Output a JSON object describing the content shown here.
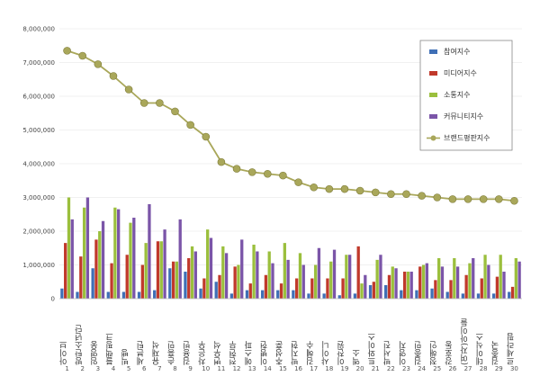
{
  "chart_data": {
    "type": "bar",
    "title": "",
    "xlabel": "",
    "ylabel": "",
    "ylim": [
      0,
      8000000
    ],
    "yticks": [
      "0",
      "1,000,000",
      "2,000,000",
      "3,000,000",
      "4,000,000",
      "5,000,000",
      "6,000,000",
      "7,000,000",
      "8,000,000"
    ],
    "ytick_values": [
      0,
      1000000,
      2000000,
      3000000,
      4000000,
      5000000,
      6000000,
      7000000,
      8000000
    ],
    "grid": true,
    "legend_position": "top-right",
    "categories": [
      "아이브",
      "방탄소년단",
      "임영웅",
      "블랙핑크",
      "빅뱅",
      "세븐틴",
      "유재석",
      "손흥민",
      "김용빈",
      "차은우",
      "변우석",
      "전현무",
      "에스파",
      "이병헌",
      "추성훈",
      "박지현",
      "김혜수",
      "샤이니",
      "이찬원",
      "엑소",
      "트와이스",
      "박서진",
      "이영지",
      "김종민",
      "정해인",
      "강호동",
      "(여자)아이들",
      "데이식스",
      "김종국",
      "르세라핌"
    ],
    "ranks": [
      "1",
      "2",
      "3",
      "4",
      "5",
      "6",
      "7",
      "8",
      "9",
      "10",
      "11",
      "12",
      "13",
      "14",
      "15",
      "16",
      "17",
      "18",
      "19",
      "20",
      "21",
      "22",
      "23",
      "24",
      "25",
      "26",
      "27",
      "28",
      "29",
      "30"
    ],
    "series": [
      {
        "name": "참여지수",
        "color": "#3f6fb6",
        "kind": "bar",
        "values": [
          300000,
          200000,
          900000,
          200000,
          200000,
          200000,
          250000,
          900000,
          800000,
          300000,
          500000,
          150000,
          250000,
          250000,
          250000,
          250000,
          150000,
          150000,
          100000,
          150000,
          400000,
          400000,
          250000,
          250000,
          300000,
          200000,
          150000,
          150000,
          150000,
          200000
        ]
      },
      {
        "name": "미디어지수",
        "color": "#c0392b",
        "kind": "bar",
        "values": [
          1650000,
          1250000,
          1750000,
          1050000,
          1300000,
          1000000,
          1700000,
          1100000,
          1200000,
          600000,
          700000,
          950000,
          450000,
          700000,
          450000,
          600000,
          600000,
          600000,
          600000,
          1550000,
          500000,
          700000,
          800000,
          950000,
          550000,
          550000,
          700000,
          600000,
          650000,
          350000
        ]
      },
      {
        "name": "소통지수",
        "color": "#9bbf3d",
        "kind": "bar",
        "values": [
          3000000,
          2700000,
          2000000,
          2700000,
          2250000,
          1650000,
          1700000,
          1100000,
          1550000,
          2050000,
          1550000,
          1000000,
          1600000,
          1400000,
          1650000,
          1350000,
          1000000,
          1100000,
          1300000,
          450000,
          1150000,
          950000,
          800000,
          1000000,
          1200000,
          1200000,
          1050000,
          1300000,
          1300000,
          1200000
        ]
      },
      {
        "name": "커뮤니티지수",
        "color": "#7b55a8",
        "kind": "bar",
        "values": [
          2350000,
          3000000,
          2300000,
          2650000,
          2400000,
          2800000,
          2050000,
          2350000,
          1400000,
          1800000,
          1350000,
          1750000,
          1400000,
          1050000,
          1150000,
          1000000,
          1500000,
          1450000,
          1300000,
          700000,
          1300000,
          900000,
          800000,
          1050000,
          950000,
          950000,
          1200000,
          1000000,
          800000,
          1100000
        ]
      },
      {
        "name": "브랜드평판지수",
        "color": "#a9a75a",
        "kind": "line",
        "values": [
          7350000,
          7200000,
          6950000,
          6600000,
          6200000,
          5800000,
          5800000,
          5550000,
          5150000,
          4800000,
          4050000,
          3850000,
          3750000,
          3700000,
          3650000,
          3450000,
          3300000,
          3250000,
          3250000,
          3200000,
          3150000,
          3100000,
          3100000,
          3050000,
          3000000,
          2950000,
          2950000,
          2950000,
          2950000,
          2900000
        ]
      }
    ]
  }
}
